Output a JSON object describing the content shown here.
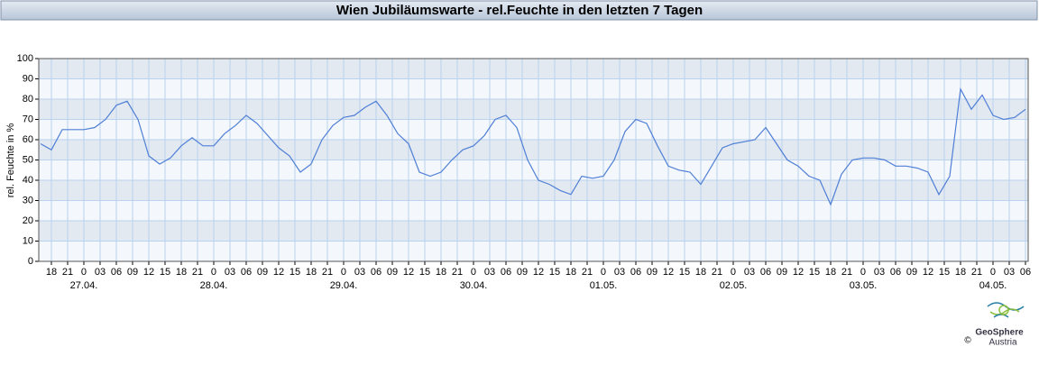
{
  "chart_data": {
    "type": "line",
    "title": "Wien Jubiläumswarte - rel.Feuchte in den letzten 7 Tagen",
    "y_label": "rel. Feuchte in %",
    "color": "#4f7fd6",
    "grid": true,
    "xlim": [
      -8.33,
      174.5
    ],
    "ylim": [
      0,
      100
    ],
    "yticks": [
      0,
      10,
      20,
      30,
      40,
      50,
      60,
      70,
      80,
      90,
      100
    ],
    "xticks": [
      {
        "value": -6,
        "label": "18"
      },
      {
        "value": -3,
        "label": "21"
      },
      0,
      {
        "value": 3,
        "label": "03"
      },
      {
        "value": 6,
        "label": "06"
      },
      {
        "value": 9,
        "label": "09"
      },
      {
        "value": 12,
        "label": "12"
      },
      {
        "value": 15,
        "label": "15"
      },
      {
        "value": 18,
        "label": "18"
      },
      {
        "value": 21,
        "label": "21"
      },
      {
        "value": 24,
        "label": "0"
      },
      {
        "value": 27,
        "label": "03"
      },
      {
        "value": 30,
        "label": "06"
      },
      {
        "value": 33,
        "label": "09"
      },
      {
        "value": 36,
        "label": "12"
      },
      {
        "value": 39,
        "label": "15"
      },
      {
        "value": 42,
        "label": "18"
      },
      {
        "value": 45,
        "label": "21"
      },
      {
        "value": 48,
        "label": "0"
      },
      {
        "value": 51,
        "label": "03"
      },
      {
        "value": 54,
        "label": "06"
      },
      {
        "value": 57,
        "label": "09"
      },
      {
        "value": 60,
        "label": "12"
      },
      {
        "value": 63,
        "label": "15"
      },
      {
        "value": 66,
        "label": "18"
      },
      {
        "value": 69,
        "label": "21"
      },
      {
        "value": 72,
        "label": "0"
      },
      {
        "value": 75,
        "label": "03"
      },
      {
        "value": 78,
        "label": "06"
      },
      {
        "value": 81,
        "label": "09"
      },
      {
        "value": 84,
        "label": "12"
      },
      {
        "value": 87,
        "label": "15"
      },
      {
        "value": 90,
        "label": "18"
      },
      {
        "value": 93,
        "label": "21"
      },
      {
        "value": 96,
        "label": "0"
      },
      {
        "value": 99,
        "label": "03"
      },
      {
        "value": 102,
        "label": "06"
      },
      {
        "value": 105,
        "label": "09"
      },
      {
        "value": 108,
        "label": "12"
      },
      {
        "value": 111,
        "label": "15"
      },
      {
        "value": 114,
        "label": "18"
      },
      {
        "value": 117,
        "label": "21"
      },
      {
        "value": 120,
        "label": "0"
      },
      {
        "value": 123,
        "label": "03"
      },
      {
        "value": 126,
        "label": "06"
      },
      {
        "value": 129,
        "label": "09"
      },
      {
        "value": 132,
        "label": "12"
      },
      {
        "value": 135,
        "label": "15"
      },
      {
        "value": 138,
        "label": "18"
      },
      {
        "value": 141,
        "label": "21"
      },
      {
        "value": 144,
        "label": "0"
      },
      {
        "value": 147,
        "label": "03"
      },
      {
        "value": 150,
        "label": "06"
      },
      {
        "value": 153,
        "label": "09"
      },
      {
        "value": 156,
        "label": "12"
      },
      {
        "value": 159,
        "label": "15"
      },
      {
        "value": 162,
        "label": "18"
      },
      {
        "value": 165,
        "label": "21"
      },
      {
        "value": 168,
        "label": "0"
      },
      {
        "value": 171,
        "label": "03"
      },
      {
        "value": 174,
        "label": "06"
      }
    ],
    "date_labels": [
      {
        "value": 0,
        "label": "27.04."
      },
      {
        "value": 24,
        "label": "28.04."
      },
      {
        "value": 48,
        "label": "29.04."
      },
      {
        "value": 72,
        "label": "30.04."
      },
      {
        "value": 96,
        "label": "01.05."
      },
      {
        "value": 120,
        "label": "02.05."
      },
      {
        "value": 144,
        "label": "03.05."
      },
      {
        "value": 168,
        "label": "04.05."
      }
    ],
    "x": [
      -8,
      -6,
      -4,
      -2,
      0,
      2,
      4,
      6,
      8,
      10,
      12,
      14,
      16,
      18,
      20,
      22,
      24,
      26,
      28,
      30,
      32,
      34,
      36,
      38,
      40,
      42,
      44,
      46,
      48,
      50,
      52,
      54,
      56,
      58,
      60,
      62,
      64,
      66,
      68,
      70,
      72,
      74,
      76,
      78,
      80,
      82,
      84,
      86,
      88,
      90,
      92,
      94,
      96,
      98,
      100,
      102,
      104,
      106,
      108,
      110,
      112,
      114,
      116,
      118,
      120,
      122,
      124,
      126,
      128,
      130,
      132,
      134,
      136,
      138,
      140,
      142,
      144,
      146,
      148,
      150,
      152,
      154,
      156,
      158,
      160,
      162,
      164,
      166,
      168,
      170,
      172,
      174
    ],
    "values": [
      58,
      55,
      65,
      65,
      65,
      66,
      70,
      77,
      79,
      70,
      52,
      48,
      51,
      57,
      61,
      57,
      57,
      63,
      67,
      72,
      68,
      62,
      56,
      52,
      44,
      48,
      60,
      67,
      71,
      72,
      76,
      79,
      72,
      63,
      58,
      44,
      42,
      44,
      50,
      55,
      57,
      62,
      70,
      72,
      66,
      50,
      40,
      38,
      35,
      33,
      42,
      41,
      42,
      50,
      64,
      70,
      68,
      57,
      47,
      45,
      44,
      38,
      47,
      56,
      58,
      59,
      60,
      66,
      58,
      50,
      47,
      42,
      40,
      28,
      43,
      50,
      51,
      51,
      50,
      47,
      47,
      46,
      44,
      33,
      42,
      85,
      75,
      82,
      72,
      70,
      71,
      75
    ]
  },
  "footer": {
    "logo": "GeoSphere",
    "logo_sub": "Austria",
    "copyright": "©"
  }
}
